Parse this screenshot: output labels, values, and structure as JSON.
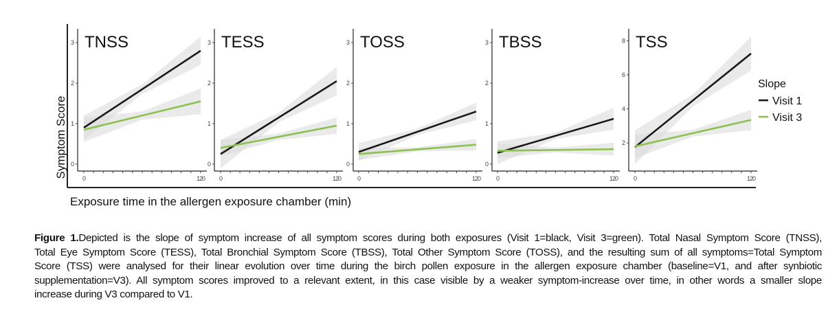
{
  "figure": {
    "ylabel": "Symptom Score",
    "xlabel": "Exposure time in the allergen exposure chamber (min)",
    "legend": {
      "title": "Slope",
      "items": [
        "Visit 1",
        "Visit 3"
      ]
    }
  },
  "colors": {
    "visit1": "#1a1a1a",
    "visit3": "#8cc152",
    "band": "#d9d9d9"
  },
  "chart_data": [
    {
      "type": "line",
      "title": "TNSS",
      "xlim": [
        0,
        120
      ],
      "xticks": [
        0,
        120
      ],
      "ylim": [
        -0.17,
        3.34
      ],
      "yticks": [
        0,
        1,
        2,
        3
      ],
      "series": [
        {
          "name": "Visit 1",
          "x": [
            0,
            120
          ],
          "y": [
            0.9,
            2.8
          ],
          "ci_halfwidth": [
            0.3,
            0.12,
            0.35
          ]
        },
        {
          "name": "Visit 3",
          "x": [
            0,
            120
          ],
          "y": [
            0.85,
            1.55
          ],
          "ci_halfwidth": [
            0.3,
            0.1,
            0.32
          ]
        }
      ]
    },
    {
      "type": "line",
      "title": "TESS",
      "xlim": [
        0,
        120
      ],
      "xticks": [
        0,
        120
      ],
      "ylim": [
        -0.17,
        3.34
      ],
      "yticks": [
        0,
        1,
        2,
        3
      ],
      "series": [
        {
          "name": "Visit 1",
          "x": [
            0,
            120
          ],
          "y": [
            0.25,
            2.05
          ],
          "ci_halfwidth": [
            0.35,
            0.12,
            0.35
          ]
        },
        {
          "name": "Visit 3",
          "x": [
            0,
            120
          ],
          "y": [
            0.4,
            0.95
          ],
          "ci_halfwidth": [
            0.2,
            0.08,
            0.2
          ]
        }
      ]
    },
    {
      "type": "line",
      "title": "TOSS",
      "xlim": [
        0,
        120
      ],
      "xticks": [
        0,
        120
      ],
      "ylim": [
        -0.17,
        3.34
      ],
      "yticks": [
        0,
        1,
        2,
        3
      ],
      "series": [
        {
          "name": "Visit 1",
          "x": [
            0,
            120
          ],
          "y": [
            0.3,
            1.3
          ],
          "ci_halfwidth": [
            0.22,
            0.08,
            0.22
          ]
        },
        {
          "name": "Visit 3",
          "x": [
            0,
            120
          ],
          "y": [
            0.25,
            0.48
          ],
          "ci_halfwidth": [
            0.15,
            0.05,
            0.14
          ]
        }
      ]
    },
    {
      "type": "line",
      "title": "TBSS",
      "xlim": [
        0,
        120
      ],
      "xticks": [
        0,
        120
      ],
      "ylim": [
        -0.17,
        3.34
      ],
      "yticks": [
        0,
        1,
        2,
        3
      ],
      "series": [
        {
          "name": "Visit 1",
          "x": [
            0,
            120
          ],
          "y": [
            0.28,
            1.12
          ],
          "ci_halfwidth": [
            0.28,
            0.08,
            0.27
          ]
        },
        {
          "name": "Visit 3",
          "x": [
            0,
            120
          ],
          "y": [
            0.33,
            0.37
          ],
          "ci_halfwidth": [
            0.18,
            0.06,
            0.16
          ]
        }
      ]
    },
    {
      "type": "line",
      "title": "TSS",
      "xlim": [
        0,
        120
      ],
      "xticks": [
        0,
        120
      ],
      "ylim": [
        0.35,
        8.7
      ],
      "yticks": [
        2,
        4,
        6,
        8
      ],
      "series": [
        {
          "name": "Visit 1",
          "x": [
            0,
            120
          ],
          "y": [
            1.75,
            7.25
          ],
          "ci_halfwidth": [
            1.0,
            0.35,
            1.0
          ]
        },
        {
          "name": "Visit 3",
          "x": [
            0,
            120
          ],
          "y": [
            1.8,
            3.35
          ],
          "ci_halfwidth": [
            0.7,
            0.2,
            0.6
          ]
        }
      ]
    }
  ],
  "caption": {
    "label": "Figure 1.",
    "lines": [
      "Depicted is the slope of symptom increase of all symptom scores during both exposures (Visit 1=black, Visit 3=green). Total Nasal Symptom Score (TNSS),",
      "Total Eye Symptom Score (TESS), Total Bronchial Symptom Score (TBSS), Total Other Symptom Score (TOSS), and the resulting sum of all symptoms=Total Symptom",
      "Score (TSS) were analysed for their linear evolution over time during the birch pollen exposure in the allergen exposure chamber (baseline=V1, and after synbiotic",
      "supplementation=V3). All symptom scores improved to a relevant extent, in this case visible by a weaker symptom-increase over time, in other words a smaller slope",
      "increase during V3 compared to V1."
    ]
  }
}
